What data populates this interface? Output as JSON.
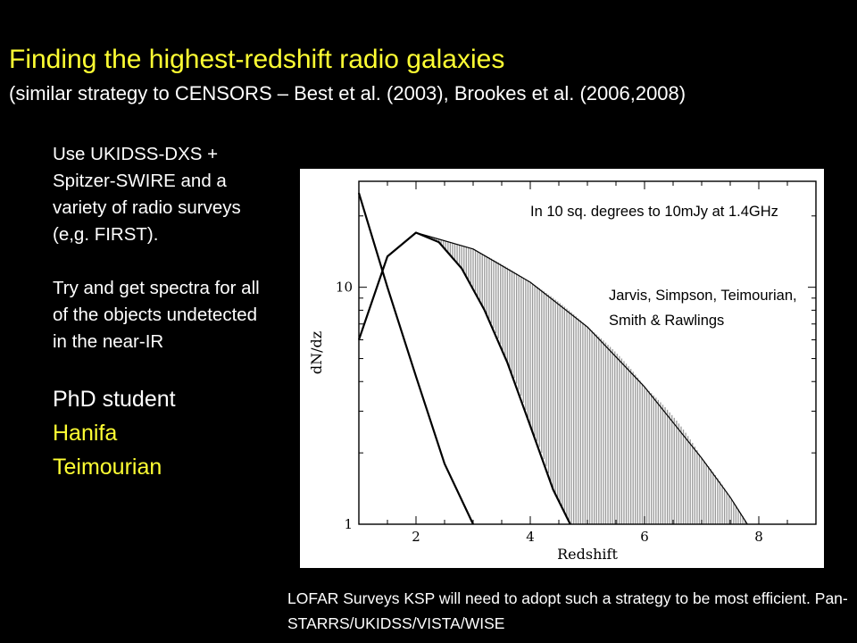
{
  "slide": {
    "title": "Finding the highest-redshift radio galaxies",
    "subtitle": "(similar strategy to CENSORS – Best et al. (2003), Brookes et al. (2006,2008)",
    "left_text": {
      "p1": "Use UKIDSS-DXS + Spitzer-SWIRE and a variety of radio surveys (e,g. FIRST).",
      "p2": "Try and get spectra for all of the objects undetected in the near-IR",
      "phd_label": "PhD student",
      "phd_first": "Hanifa",
      "phd_last": "Teimourian"
    },
    "bottom_note": "LOFAR Surveys KSP will need to adopt such a strategy to be most efficient. Pan-STARRS/UKIDSS/VISTA/WISE",
    "colors": {
      "title": "#ffff33",
      "background": "#000000",
      "text": "#ffffff",
      "fill": "#999999"
    }
  },
  "chart_data": {
    "type": "line",
    "xlabel": "Redshift",
    "ylabel": "dN/dz",
    "xlim": [
      1,
      9
    ],
    "ylim": [
      1,
      28
    ],
    "yscale": "log",
    "x_ticks": [
      2,
      4,
      6,
      8
    ],
    "y_ticks": [
      1,
      10
    ],
    "annotations": [
      "In 10 sq. degrees to 10mJy at 1.4GHz",
      "Jarvis, Simpson, Teimourian, Smith & Rawlings"
    ],
    "series": [
      {
        "x": [
          1.0,
          1.5,
          2.0,
          2.5,
          3.0
        ],
        "y": [
          25,
          10,
          4.2,
          1.8,
          1.0
        ]
      },
      {
        "x": [
          1.0,
          1.5,
          2.0,
          2.4,
          2.8,
          3.2,
          3.6,
          4.0,
          4.4,
          4.7
        ],
        "y": [
          6.0,
          13.5,
          17.0,
          15.5,
          12.0,
          8.0,
          4.8,
          2.6,
          1.4,
          1.0
        ]
      },
      {
        "x": [
          2.0,
          3.0,
          4.0,
          5.0,
          6.0,
          7.0,
          7.5,
          7.8
        ],
        "y": [
          17.0,
          14.5,
          10.5,
          6.8,
          3.8,
          1.9,
          1.3,
          1.0
        ]
      }
    ],
    "shaded_between": [
      1,
      2
    ]
  }
}
